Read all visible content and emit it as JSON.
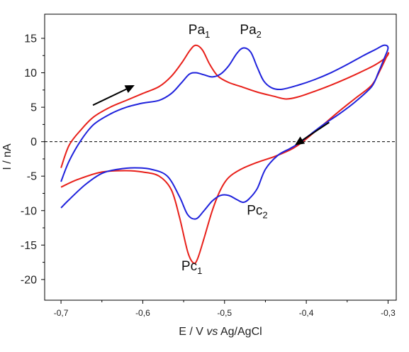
{
  "chart_data": {
    "type": "line",
    "xlabel": {
      "pre": "E / V ",
      "italic": "vs",
      "post": " Ag/AgCl"
    },
    "ylabel": "I / nA",
    "xlim": [
      -0.72,
      -0.29
    ],
    "ylim": [
      -23,
      18.5
    ],
    "x_ticks": [
      -0.7,
      -0.6,
      -0.5,
      -0.4,
      -0.3
    ],
    "x_tick_labels": [
      "-0,7",
      "-0,6",
      "-0,5",
      "-0,4",
      "-0,3"
    ],
    "y_ticks": [
      15,
      10,
      5,
      0,
      -5,
      -10,
      -15,
      -20
    ],
    "y_tick_labels": [
      "15",
      "10",
      "5",
      "0",
      "-5",
      "-10",
      "-15",
      "-20"
    ],
    "zero_line": {
      "y": 0,
      "style": "dashed",
      "color": "#000000"
    },
    "grid": false,
    "series": [
      {
        "color": "#e8201a",
        "points": [
          [
            -0.7,
            -3.8
          ],
          [
            -0.69,
            -0.5
          ],
          [
            -0.675,
            1.8
          ],
          [
            -0.66,
            3.6
          ],
          [
            -0.64,
            5.0
          ],
          [
            -0.62,
            6.0
          ],
          [
            -0.6,
            7.0
          ],
          [
            -0.58,
            8.0
          ],
          [
            -0.565,
            9.5
          ],
          [
            -0.552,
            11.5
          ],
          [
            -0.542,
            13.3
          ],
          [
            -0.535,
            14.0
          ],
          [
            -0.527,
            13.3
          ],
          [
            -0.518,
            11.2
          ],
          [
            -0.508,
            9.5
          ],
          [
            -0.495,
            8.6
          ],
          [
            -0.48,
            8.0
          ],
          [
            -0.46,
            7.2
          ],
          [
            -0.44,
            6.6
          ],
          [
            -0.425,
            6.2
          ],
          [
            -0.41,
            6.5
          ],
          [
            -0.39,
            7.3
          ],
          [
            -0.37,
            8.2
          ],
          [
            -0.35,
            9.2
          ],
          [
            -0.33,
            10.3
          ],
          [
            -0.315,
            11.2
          ],
          [
            -0.302,
            12.3
          ],
          [
            -0.3,
            12.8
          ],
          [
            -0.31,
            10.3
          ],
          [
            -0.32,
            8.2
          ],
          [
            -0.34,
            6.3
          ],
          [
            -0.36,
            4.4
          ],
          [
            -0.38,
            2.4
          ],
          [
            -0.4,
            0.4
          ],
          [
            -0.41,
            -0.5
          ],
          [
            -0.42,
            -1.2
          ],
          [
            -0.44,
            -2.2
          ],
          [
            -0.46,
            -3.0
          ],
          [
            -0.48,
            -4.0
          ],
          [
            -0.495,
            -5.2
          ],
          [
            -0.505,
            -7.0
          ],
          [
            -0.515,
            -10.0
          ],
          [
            -0.525,
            -14.0
          ],
          [
            -0.533,
            -17.0
          ],
          [
            -0.538,
            -17.6
          ],
          [
            -0.545,
            -16.0
          ],
          [
            -0.555,
            -11.0
          ],
          [
            -0.565,
            -7.0
          ],
          [
            -0.58,
            -5.0
          ],
          [
            -0.6,
            -4.4
          ],
          [
            -0.62,
            -4.2
          ],
          [
            -0.65,
            -4.4
          ],
          [
            -0.68,
            -5.5
          ],
          [
            -0.7,
            -6.6
          ]
        ]
      },
      {
        "color": "#1f22dc",
        "points": [
          [
            -0.7,
            -5.8
          ],
          [
            -0.69,
            -2.8
          ],
          [
            -0.675,
            0.3
          ],
          [
            -0.66,
            2.5
          ],
          [
            -0.64,
            4.0
          ],
          [
            -0.62,
            5.0
          ],
          [
            -0.6,
            5.6
          ],
          [
            -0.58,
            6.0
          ],
          [
            -0.565,
            7.0
          ],
          [
            -0.553,
            8.5
          ],
          [
            -0.543,
            9.8
          ],
          [
            -0.535,
            10.0
          ],
          [
            -0.525,
            9.7
          ],
          [
            -0.515,
            9.4
          ],
          [
            -0.505,
            9.8
          ],
          [
            -0.495,
            11.0
          ],
          [
            -0.485,
            12.8
          ],
          [
            -0.477,
            13.6
          ],
          [
            -0.468,
            13.0
          ],
          [
            -0.46,
            10.8
          ],
          [
            -0.452,
            8.8
          ],
          [
            -0.442,
            7.8
          ],
          [
            -0.43,
            7.6
          ],
          [
            -0.41,
            8.2
          ],
          [
            -0.39,
            9.0
          ],
          [
            -0.37,
            10.0
          ],
          [
            -0.35,
            11.2
          ],
          [
            -0.33,
            12.5
          ],
          [
            -0.315,
            13.4
          ],
          [
            -0.305,
            14.0
          ],
          [
            -0.3,
            13.6
          ],
          [
            -0.305,
            12.0
          ],
          [
            -0.312,
            10.0
          ],
          [
            -0.32,
            8.0
          ],
          [
            -0.34,
            5.8
          ],
          [
            -0.36,
            4.0
          ],
          [
            -0.38,
            2.4
          ],
          [
            -0.4,
            0.6
          ],
          [
            -0.41,
            -0.3
          ],
          [
            -0.42,
            -1.0
          ],
          [
            -0.435,
            -2.0
          ],
          [
            -0.45,
            -4.0
          ],
          [
            -0.46,
            -6.8
          ],
          [
            -0.47,
            -8.3
          ],
          [
            -0.477,
            -8.8
          ],
          [
            -0.485,
            -8.4
          ],
          [
            -0.495,
            -7.8
          ],
          [
            -0.505,
            -7.8
          ],
          [
            -0.515,
            -8.6
          ],
          [
            -0.525,
            -10.0
          ],
          [
            -0.535,
            -11.2
          ],
          [
            -0.545,
            -10.6
          ],
          [
            -0.555,
            -8.0
          ],
          [
            -0.57,
            -5.0
          ],
          [
            -0.59,
            -4.0
          ],
          [
            -0.61,
            -3.8
          ],
          [
            -0.63,
            -4.0
          ],
          [
            -0.65,
            -4.6
          ],
          [
            -0.67,
            -6.2
          ],
          [
            -0.69,
            -8.4
          ],
          [
            -0.7,
            -9.6
          ]
        ]
      }
    ],
    "annotations": [
      {
        "base": "Pa",
        "sub": "1",
        "x": -0.531,
        "y": 15.6,
        "anchor": "middle"
      },
      {
        "base": "Pa",
        "sub": "2",
        "x": -0.468,
        "y": 15.6,
        "anchor": "middle"
      },
      {
        "base": "Pc",
        "sub": "2",
        "x": -0.46,
        "y": -10.6,
        "anchor": "middle"
      },
      {
        "base": "Pc",
        "sub": "1",
        "x": -0.54,
        "y": -18.7,
        "anchor": "middle"
      }
    ],
    "arrows": [
      {
        "from": [
          -0.661,
          5.3
        ],
        "to": [
          -0.61,
          8.2
        ],
        "color": "#000000"
      },
      {
        "from": [
          -0.372,
          2.8
        ],
        "to": [
          -0.414,
          -0.5
        ],
        "color": "#000000"
      }
    ]
  }
}
